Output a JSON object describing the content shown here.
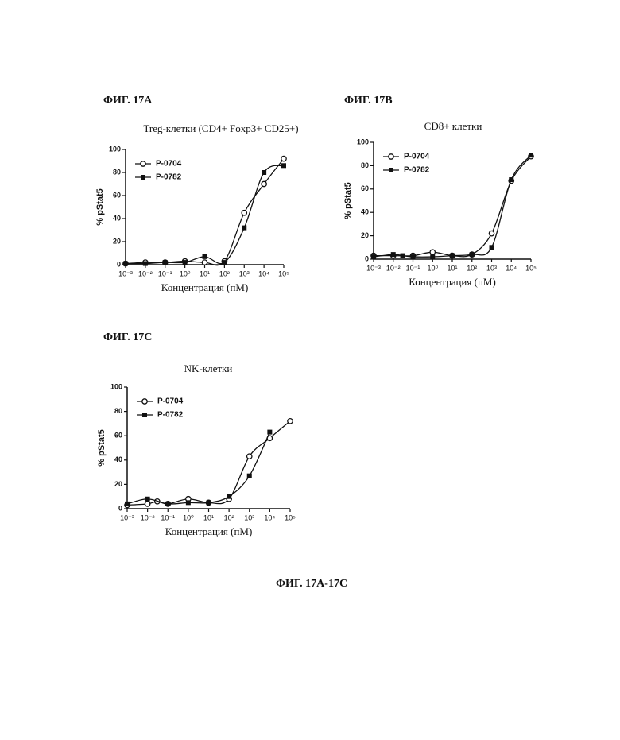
{
  "chart_data": [
    {
      "type": "scatter",
      "figure_label": "ФИГ. 17A",
      "title": "Treg-клетки (CD4+ Foxp3+ CD25+)",
      "x_label": "Концентрация (пМ)",
      "y_label": "% pStat5",
      "xscale": "log",
      "xlim": [
        0.001,
        100000
      ],
      "ylim": [
        0,
        100
      ],
      "xticks": [
        {
          "value": 0.001,
          "label": "10⁻³"
        },
        {
          "value": 0.01,
          "label": "10⁻²"
        },
        {
          "value": 0.1,
          "label": "10⁻¹"
        },
        {
          "value": 1,
          "label": "10⁰"
        },
        {
          "value": 10,
          "label": "10¹"
        },
        {
          "value": 100,
          "label": "10²"
        },
        {
          "value": 1000,
          "label": "10³"
        },
        {
          "value": 10000,
          "label": "10⁴"
        },
        {
          "value": 100000,
          "label": "10⁵"
        }
      ],
      "yticks": [
        0,
        20,
        40,
        60,
        80,
        100
      ],
      "series": [
        {
          "name": "P-0704",
          "marker": "circle",
          "color": "#111111",
          "x": [
            0.001,
            0.01,
            0.1,
            1,
            10,
            100,
            1000,
            10000,
            100000
          ],
          "values": [
            1,
            2,
            2,
            3,
            2,
            3,
            45,
            70,
            92
          ]
        },
        {
          "name": "P-0782",
          "marker": "square",
          "color": "#111111",
          "x": [
            0.001,
            0.01,
            0.1,
            1,
            10,
            100,
            1000,
            10000,
            100000
          ],
          "values": [
            1,
            1,
            2,
            2,
            7,
            2,
            32,
            80,
            86
          ]
        }
      ]
    },
    {
      "type": "scatter",
      "figure_label": "ФИГ. 17B",
      "title": "CD8+ клетки",
      "x_label": "Концентрация (пМ)",
      "y_label": "% pStat5",
      "xscale": "log",
      "xlim": [
        0.001,
        100000
      ],
      "ylim": [
        0,
        100
      ],
      "xticks": [
        {
          "value": 0.001,
          "label": "10⁻³"
        },
        {
          "value": 0.01,
          "label": "10⁻²"
        },
        {
          "value": 0.1,
          "label": "10⁻¹"
        },
        {
          "value": 1,
          "label": "10⁰"
        },
        {
          "value": 10,
          "label": "10¹"
        },
        {
          "value": 100,
          "label": "10²"
        },
        {
          "value": 1000,
          "label": "10³"
        },
        {
          "value": 10000,
          "label": "10⁴"
        },
        {
          "value": 100000,
          "label": "10⁵"
        }
      ],
      "yticks": [
        0,
        20,
        40,
        60,
        80,
        100
      ],
      "series": [
        {
          "name": "P-0704",
          "marker": "circle",
          "color": "#111111",
          "x": [
            0.001,
            0.01,
            0.1,
            1,
            10,
            100,
            1000,
            10000,
            100000
          ],
          "values": [
            3,
            3,
            3,
            6,
            3,
            4,
            22,
            67,
            88
          ]
        },
        {
          "name": "P-0782",
          "marker": "square",
          "color": "#111111",
          "x": [
            0.001,
            0.01,
            0.03,
            0.1,
            1,
            10,
            100,
            1000,
            10000,
            100000
          ],
          "values": [
            2,
            4,
            3,
            2,
            2,
            3,
            4,
            10,
            68,
            89
          ]
        }
      ]
    },
    {
      "type": "scatter",
      "figure_label": "ФИГ. 17C",
      "title": "NK-клетки",
      "x_label": "Концентрация (пМ)",
      "y_label": "% pStat5",
      "xscale": "log",
      "xlim": [
        0.001,
        100000
      ],
      "ylim": [
        0,
        100
      ],
      "xticks": [
        {
          "value": 0.001,
          "label": "10⁻³"
        },
        {
          "value": 0.01,
          "label": "10⁻²"
        },
        {
          "value": 0.1,
          "label": "10⁻¹"
        },
        {
          "value": 1,
          "label": "10⁰"
        },
        {
          "value": 10,
          "label": "10¹"
        },
        {
          "value": 100,
          "label": "10²"
        },
        {
          "value": 1000,
          "label": "10³"
        },
        {
          "value": 10000,
          "label": "10⁴"
        },
        {
          "value": 100000,
          "label": "10⁵"
        }
      ],
      "yticks": [
        0,
        20,
        40,
        60,
        80,
        100
      ],
      "series": [
        {
          "name": "P-0704",
          "marker": "circle",
          "color": "#111111",
          "x": [
            0.001,
            0.01,
            0.03,
            0.1,
            1,
            10,
            100,
            1000,
            10000,
            100000
          ],
          "values": [
            3,
            4,
            6,
            4,
            8,
            5,
            8,
            43,
            58,
            72
          ]
        },
        {
          "name": "P-0782",
          "marker": "square",
          "color": "#111111",
          "x": [
            0.001,
            0.01,
            0.1,
            1,
            10,
            100,
            1000,
            10000
          ],
          "values": [
            4,
            8,
            4,
            5,
            5,
            10,
            27,
            63
          ]
        }
      ]
    }
  ],
  "caption": "ФИГ. 17A-17C"
}
